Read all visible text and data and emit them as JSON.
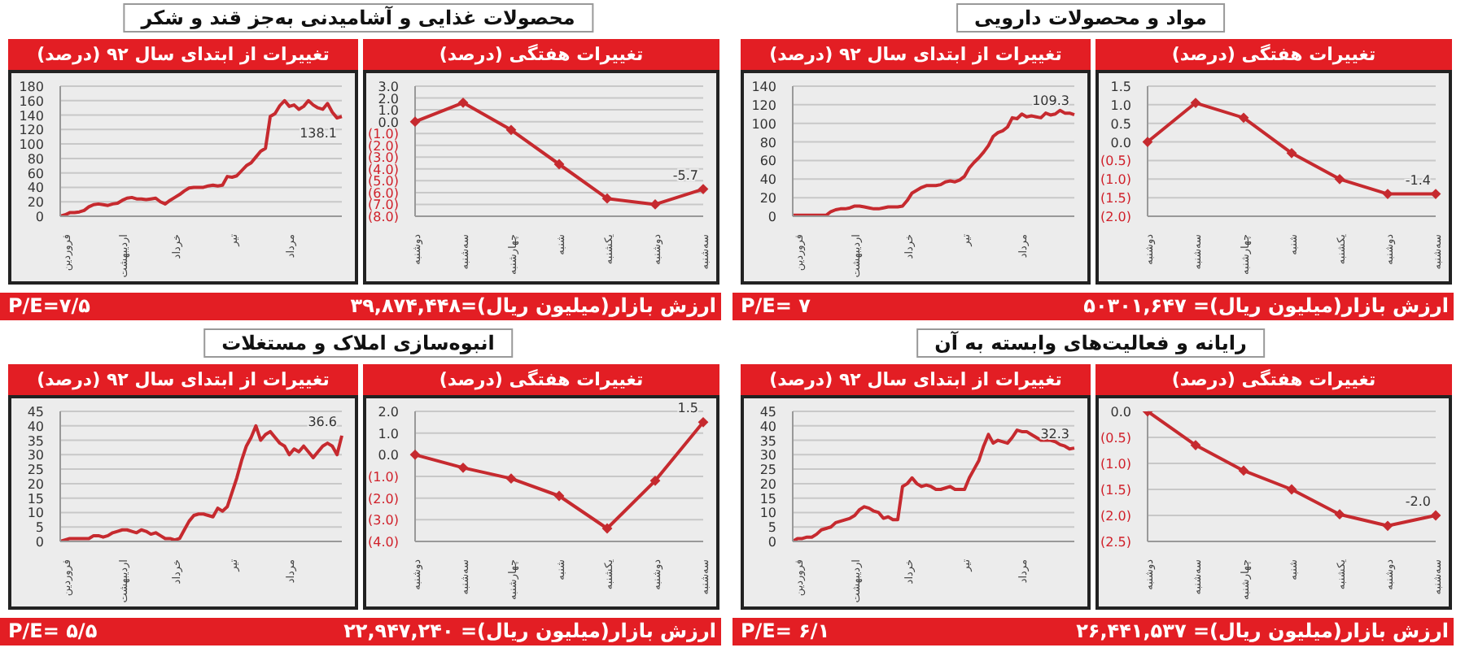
{
  "chart_data": [
    {
      "type": "line",
      "title": "محصولات غذایی و آشامیدنی به‌جز قند و شکر",
      "subtitle": "تغییرات از ابتدای سال ۹۲ (درصد)",
      "annotations": [
        "P/E=۷/۵"
      ],
      "color": "#c62a2f",
      "grid": "y",
      "ylim": [
        0,
        180
      ],
      "yticks": [
        0,
        20,
        40,
        60,
        80,
        100,
        120,
        140,
        160,
        180
      ],
      "categories": [
        null,
        "فروردین",
        null,
        null,
        null,
        null,
        null,
        null,
        null,
        null,
        null,
        null,
        null,
        "اردیبهشت",
        null,
        null,
        null,
        null,
        null,
        null,
        null,
        null,
        null,
        null,
        "خرداد",
        null,
        null,
        null,
        null,
        null,
        null,
        null,
        null,
        null,
        null,
        null,
        "تیر",
        null,
        null,
        null,
        null,
        null,
        null,
        null,
        null,
        null,
        null,
        null,
        "مرداد",
        null,
        null,
        null,
        null,
        null,
        null,
        null,
        null,
        null,
        null,
        null
      ],
      "values": [
        0,
        2,
        5,
        5,
        6,
        8,
        13,
        16,
        17,
        16,
        15,
        17,
        18,
        22,
        25,
        26,
        24,
        24,
        23,
        24,
        25,
        20,
        17,
        22,
        26,
        30,
        35,
        39,
        40,
        40,
        40,
        42,
        43,
        42,
        43,
        55,
        54,
        56,
        63,
        70,
        74,
        82,
        90,
        94,
        138,
        142,
        153,
        160,
        152,
        154,
        148,
        152,
        160,
        154,
        150,
        148,
        156,
        144,
        136,
        138.1
      ],
      "value_labels": [
        null,
        null,
        null,
        null,
        null,
        null,
        null,
        null,
        null,
        null,
        null,
        null,
        null,
        null,
        null,
        null,
        null,
        null,
        null,
        null,
        null,
        null,
        null,
        null,
        null,
        null,
        null,
        null,
        null,
        null,
        null,
        null,
        null,
        null,
        null,
        null,
        null,
        null,
        null,
        null,
        null,
        null,
        null,
        null,
        null,
        null,
        null,
        null,
        null,
        null,
        null,
        null,
        null,
        null,
        null,
        null,
        null,
        null,
        null,
        "138.1"
      ]
    },
    {
      "type": "line",
      "title": "تغییرات هفتگی (درصد)",
      "annotations": [
        "ارزش بازار(میلیون ریال)=۳۹,۸۷۴,۴۴۸"
      ],
      "color": "#c62a2f",
      "grid": "y",
      "marker": "diamond",
      "ylim": [
        -8,
        3
      ],
      "yticks": [
        {
          "value": -8,
          "label": "(8.0)"
        },
        {
          "value": -7,
          "label": "(7.0)"
        },
        {
          "value": -6,
          "label": "(6.0)"
        },
        {
          "value": -5,
          "label": "(5.0)"
        },
        {
          "value": -4,
          "label": "(4.0)"
        },
        {
          "value": -3,
          "label": "(3.0)"
        },
        {
          "value": -2,
          "label": "(2.0)"
        },
        {
          "value": -1,
          "label": "(1.0)"
        },
        {
          "value": 0,
          "label": "0.0"
        },
        {
          "value": 1,
          "label": "1.0"
        },
        {
          "value": 2,
          "label": "2.0"
        },
        {
          "value": 3,
          "label": "3.0"
        }
      ],
      "categories": [
        "دوشنبه",
        "سه‌شنبه",
        "چهارشنبه",
        "شنبه",
        "یکشنبه",
        "دوشنبه",
        "سه‌شنبه"
      ],
      "values": [
        0,
        1.6,
        -0.7,
        -3.6,
        -6.5,
        -7.0,
        -5.7
      ],
      "value_labels": [
        null,
        null,
        null,
        null,
        null,
        null,
        "-5.7"
      ]
    },
    {
      "type": "line",
      "title": "مواد و محصولات دارویی",
      "subtitle": "تغییرات از ابتدای سال ۹۲ (درصد)",
      "annotations": [
        "P/E= ۷"
      ],
      "color": "#c62a2f",
      "grid": "y",
      "ylim": [
        0,
        140
      ],
      "yticks": [
        0,
        20,
        40,
        60,
        80,
        100,
        120,
        140
      ],
      "categories": [
        null,
        "فروردین",
        null,
        null,
        null,
        null,
        null,
        null,
        null,
        null,
        null,
        null,
        null,
        "اردیبهشت",
        null,
        null,
        null,
        null,
        null,
        null,
        null,
        null,
        null,
        null,
        "خرداد",
        null,
        null,
        null,
        null,
        null,
        null,
        null,
        null,
        null,
        null,
        null,
        "تیر",
        null,
        null,
        null,
        null,
        null,
        null,
        null,
        null,
        null,
        null,
        null,
        "مرداد",
        null,
        null,
        null,
        null,
        null,
        null,
        null,
        null,
        null,
        null,
        null
      ],
      "values": [
        1,
        1,
        1,
        1,
        1,
        1,
        1,
        1,
        5,
        7,
        8,
        8,
        9,
        11,
        11,
        10,
        9,
        8,
        8,
        9,
        10,
        10,
        10,
        11,
        17,
        25,
        28,
        31,
        33,
        33,
        33,
        34,
        37,
        38,
        37,
        39,
        43,
        52,
        58,
        63,
        69,
        76,
        86,
        90,
        92,
        96,
        106,
        105,
        110,
        107,
        108,
        107,
        106,
        111,
        109,
        110,
        114,
        111,
        111,
        109.3
      ],
      "value_labels": [
        null,
        null,
        null,
        null,
        null,
        null,
        null,
        null,
        null,
        null,
        null,
        null,
        null,
        null,
        null,
        null,
        null,
        null,
        null,
        null,
        null,
        null,
        null,
        null,
        null,
        null,
        null,
        null,
        null,
        null,
        null,
        null,
        null,
        null,
        null,
        null,
        null,
        null,
        null,
        null,
        null,
        null,
        null,
        null,
        null,
        null,
        null,
        null,
        null,
        null,
        null,
        null,
        null,
        null,
        null,
        null,
        null,
        null,
        null,
        "109.3"
      ]
    },
    {
      "type": "line",
      "title": "تغییرات هفتگی (درصد)",
      "annotations": [
        "ارزش بازار(میلیون ریال)= ۵۰۳۰۱,۶۴۷"
      ],
      "color": "#c62a2f",
      "grid": "y",
      "marker": "diamond",
      "ylim": [
        -2,
        1.5
      ],
      "yticks": [
        {
          "value": -2,
          "label": "(2.0)"
        },
        {
          "value": -1.5,
          "label": "(1.5)"
        },
        {
          "value": -1,
          "label": "(1.0)"
        },
        {
          "value": -0.5,
          "label": "(0.5)"
        },
        {
          "value": 0,
          "label": "0.0"
        },
        {
          "value": 0.5,
          "label": "0.5"
        },
        {
          "value": 1,
          "label": "1.0"
        },
        {
          "value": 1.5,
          "label": "1.5"
        }
      ],
      "categories": [
        "دوشنبه",
        "سه‌شنبه",
        "چهارشنبه",
        "شنبه",
        "یکشنبه",
        "دوشنبه",
        "سه‌شنبه"
      ],
      "values": [
        0,
        1.05,
        0.65,
        -0.3,
        -1.0,
        -1.4,
        -1.4
      ],
      "value_labels": [
        null,
        null,
        null,
        null,
        null,
        null,
        "-1.4"
      ]
    },
    {
      "type": "line",
      "title": "انبوه‌سازی املاک و مستغلات",
      "subtitle": "تغییرات از ابتدای سال ۹۲ (درصد)",
      "annotations": [
        "P/E= ۵/۵"
      ],
      "color": "#c62a2f",
      "grid": "y",
      "ylim": [
        0,
        45
      ],
      "yticks": [
        0,
        5,
        10,
        15,
        20,
        25,
        30,
        35,
        40,
        45
      ],
      "categories": [
        null,
        "فروردین",
        null,
        null,
        null,
        null,
        null,
        null,
        null,
        null,
        null,
        null,
        null,
        "اردیبهشت",
        null,
        null,
        null,
        null,
        null,
        null,
        null,
        null,
        null,
        null,
        "خرداد",
        null,
        null,
        null,
        null,
        null,
        null,
        null,
        null,
        null,
        null,
        null,
        "تیر",
        null,
        null,
        null,
        null,
        null,
        null,
        null,
        null,
        null,
        null,
        null,
        "مرداد",
        null,
        null,
        null,
        null,
        null,
        null,
        null,
        null,
        null,
        null,
        null
      ],
      "values": [
        0,
        0.5,
        1,
        1,
        1,
        1,
        1,
        2,
        2,
        1.5,
        2,
        3,
        3.5,
        4,
        4,
        3.5,
        3,
        4,
        3.5,
        2.5,
        3,
        2,
        1,
        1,
        0.5,
        1,
        4,
        7,
        9,
        9.5,
        9.5,
        9,
        8.5,
        11.5,
        10.5,
        12,
        17,
        22,
        28,
        33,
        36,
        40,
        35,
        37,
        38,
        36,
        34,
        33,
        30,
        32,
        31,
        33,
        31,
        29,
        31,
        33,
        34,
        33,
        30,
        36.6
      ],
      "value_labels": [
        null,
        null,
        null,
        null,
        null,
        null,
        null,
        null,
        null,
        null,
        null,
        null,
        null,
        null,
        null,
        null,
        null,
        null,
        null,
        null,
        null,
        null,
        null,
        null,
        null,
        null,
        null,
        null,
        null,
        null,
        null,
        null,
        null,
        null,
        null,
        null,
        null,
        null,
        null,
        null,
        null,
        null,
        null,
        null,
        null,
        null,
        null,
        null,
        null,
        null,
        null,
        null,
        null,
        null,
        null,
        null,
        null,
        null,
        null,
        "36.6"
      ]
    },
    {
      "type": "line",
      "title": "تغییرات هفتگی (درصد)",
      "annotations": [
        "ارزش بازار(میلیون ریال)= ۲۲,۹۴۷,۲۴۰"
      ],
      "color": "#c62a2f",
      "grid": "y",
      "marker": "diamond",
      "ylim": [
        -4,
        2
      ],
      "yticks": [
        {
          "value": -4,
          "label": "(4.0)"
        },
        {
          "value": -3,
          "label": "(3.0)"
        },
        {
          "value": -2,
          "label": "(2.0)"
        },
        {
          "value": -1,
          "label": "(1.0)"
        },
        {
          "value": 0,
          "label": "0.0"
        },
        {
          "value": 1,
          "label": "1.0"
        },
        {
          "value": 2,
          "label": "2.0"
        }
      ],
      "categories": [
        "دوشنبه",
        "سه‌شنبه",
        "چهارشنبه",
        "شنبه",
        "یکشنبه",
        "دوشنبه",
        "سه‌شنبه"
      ],
      "values": [
        0,
        -0.6,
        -1.1,
        -1.9,
        -3.4,
        -1.2,
        1.5
      ],
      "value_labels": [
        null,
        null,
        null,
        null,
        null,
        null,
        "1.5"
      ]
    },
    {
      "type": "line",
      "title": "رایانه و فعالیت‌های وابسته به آن",
      "subtitle": "تغییرات از ابتدای سال ۹۲ (درصد)",
      "annotations": [
        "P/E= ۶/۱"
      ],
      "color": "#c62a2f",
      "grid": "y",
      "ylim": [
        0,
        45
      ],
      "yticks": [
        0,
        5,
        10,
        15,
        20,
        25,
        30,
        35,
        40,
        45
      ],
      "categories": [
        null,
        "فروردین",
        null,
        null,
        null,
        null,
        null,
        null,
        null,
        null,
        null,
        null,
        null,
        "اردیبهشت",
        null,
        null,
        null,
        null,
        null,
        null,
        null,
        null,
        null,
        null,
        "خرداد",
        null,
        null,
        null,
        null,
        null,
        null,
        null,
        null,
        null,
        null,
        null,
        "تیر",
        null,
        null,
        null,
        null,
        null,
        null,
        null,
        null,
        null,
        null,
        null,
        "مرداد",
        null,
        null,
        null,
        null,
        null,
        null,
        null,
        null,
        null,
        null,
        null
      ],
      "values": [
        0,
        1,
        1,
        1.5,
        1.5,
        2.5,
        4,
        4.5,
        5,
        6.5,
        7,
        7.5,
        8,
        9,
        11,
        12,
        11.5,
        10.5,
        10,
        8,
        8.5,
        7.5,
        7.5,
        19,
        20,
        22,
        20,
        19,
        19.5,
        19,
        18,
        18,
        18.5,
        19,
        18,
        18,
        18,
        22,
        25,
        28,
        33,
        37,
        34,
        35,
        34.5,
        34,
        36,
        38.5,
        38,
        38,
        37,
        36,
        35,
        35,
        35,
        34.5,
        33.5,
        33,
        32,
        32.3
      ],
      "value_labels": [
        null,
        null,
        null,
        null,
        null,
        null,
        null,
        null,
        null,
        null,
        null,
        null,
        null,
        null,
        null,
        null,
        null,
        null,
        null,
        null,
        null,
        null,
        null,
        null,
        null,
        null,
        null,
        null,
        null,
        null,
        null,
        null,
        null,
        null,
        null,
        null,
        null,
        null,
        null,
        null,
        null,
        null,
        null,
        null,
        null,
        null,
        null,
        null,
        null,
        null,
        null,
        null,
        null,
        null,
        null,
        null,
        null,
        null,
        null,
        "32.3"
      ]
    },
    {
      "type": "line",
      "title": "تغییرات هفتگی (درصد)",
      "annotations": [
        "ارزش بازار(میلیون ریال)= ۲۶,۴۴۱,۵۳۷"
      ],
      "color": "#c62a2f",
      "grid": "y",
      "marker": "diamond",
      "ylim": [
        -2.5,
        0
      ],
      "yticks": [
        {
          "value": -2.5,
          "label": "(2.5)"
        },
        {
          "value": -2,
          "label": "(2.0)"
        },
        {
          "value": -1.5,
          "label": "(1.5)"
        },
        {
          "value": -1,
          "label": "(1.0)"
        },
        {
          "value": -0.5,
          "label": "(0.5)"
        },
        {
          "value": 0,
          "label": "0.0"
        }
      ],
      "categories": [
        "دوشنبه",
        "سه‌شنبه",
        "چهارشنبه",
        "شنبه",
        "یکشنبه",
        "دوشنبه",
        "سه‌شنبه"
      ],
      "values": [
        0,
        -0.65,
        -1.14,
        -1.5,
        -1.98,
        -2.2,
        -2.0
      ],
      "value_labels": [
        null,
        null,
        null,
        null,
        null,
        null,
        "-2.0"
      ]
    }
  ]
}
